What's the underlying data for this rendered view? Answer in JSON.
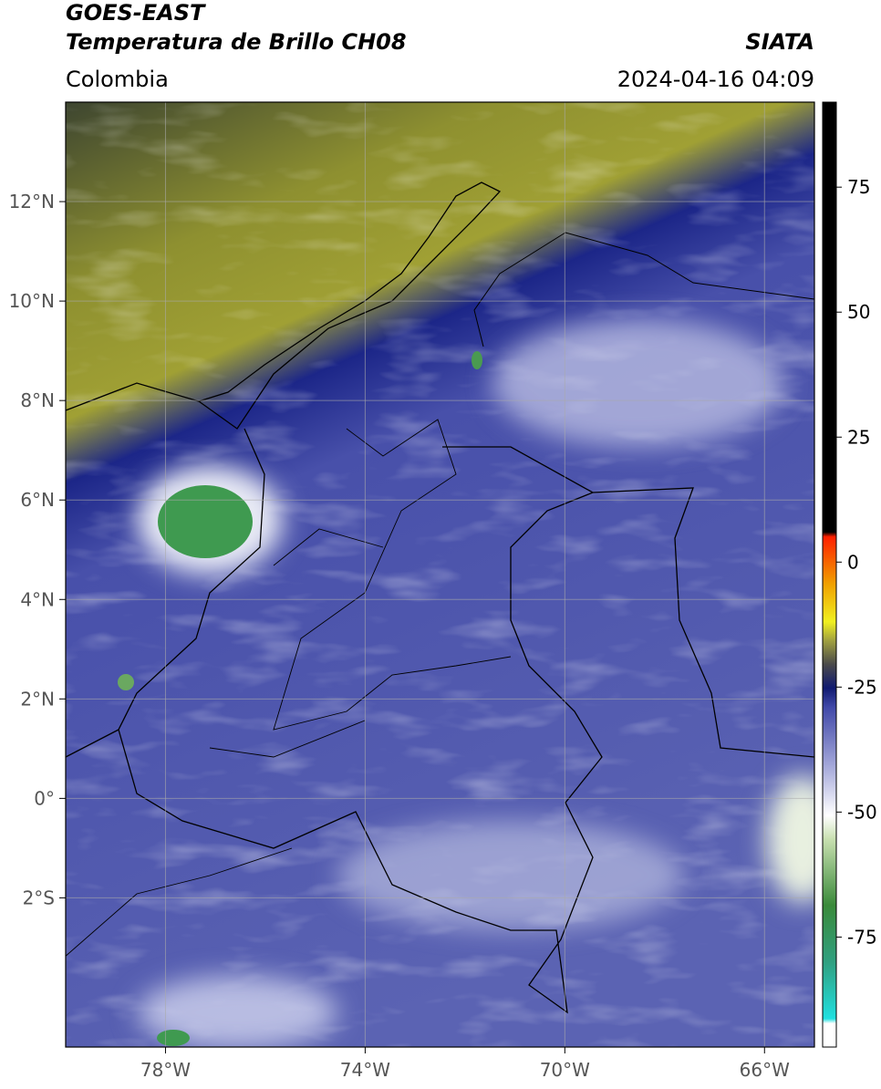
{
  "header": {
    "satellite": "GOES-EAST",
    "product": "Temperatura de Brillo CH08",
    "source": "SIATA",
    "region": "Colombia",
    "datetime": "2024-04-16 04:09"
  },
  "map": {
    "xlim": [
      -80,
      -65
    ],
    "ylim": [
      -5,
      14
    ],
    "xticks": [
      {
        "value": -78,
        "label": "78°W"
      },
      {
        "value": -74,
        "label": "74°W"
      },
      {
        "value": -70,
        "label": "70°W"
      },
      {
        "value": -66,
        "label": "66°W"
      }
    ],
    "yticks": [
      {
        "value": 12,
        "label": "12°N"
      },
      {
        "value": 10,
        "label": "10°N"
      },
      {
        "value": 8,
        "label": "8°N"
      },
      {
        "value": 6,
        "label": "6°N"
      },
      {
        "value": 4,
        "label": "4°N"
      },
      {
        "value": 2,
        "label": "2°N"
      },
      {
        "value": 0,
        "label": "0°"
      },
      {
        "value": -2,
        "label": "2°S"
      }
    ],
    "grid": true
  },
  "colorbar": {
    "lim": [
      -97,
      92
    ],
    "ticks": [
      75,
      50,
      25,
      0,
      -25,
      -50,
      -75
    ]
  }
}
